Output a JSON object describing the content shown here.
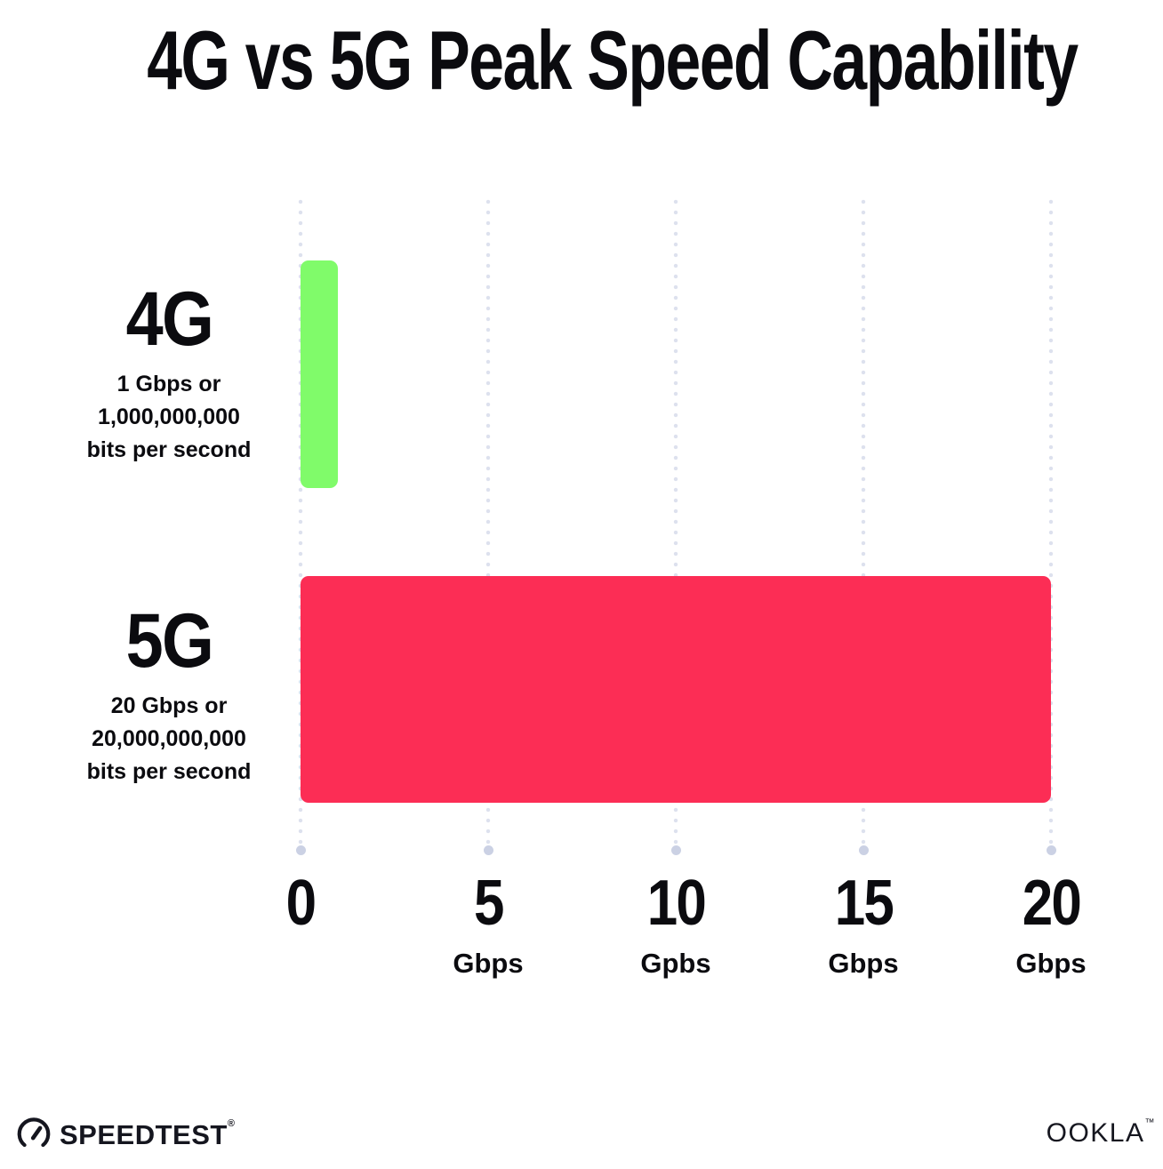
{
  "title": "4G vs 5G Peak Speed Capability",
  "chart_data": {
    "type": "bar",
    "orientation": "horizontal",
    "title": "4G vs 5G Peak Speed Capability",
    "categories": [
      "4G",
      "5G"
    ],
    "values": [
      1,
      20
    ],
    "value_unit": "Gbps",
    "xlabel": "",
    "ylabel": "",
    "xlim": [
      0,
      20
    ],
    "grid": "dotted vertical gridlines every 5 Gbps with round end dot",
    "legend": "none",
    "bars": [
      {
        "label": "4G",
        "value_gbps": 1,
        "color": "#80FB6A",
        "description": [
          "1 Gbps or",
          "1,000,000,000",
          "bits per second"
        ]
      },
      {
        "label": "5G",
        "value_gbps": 20,
        "color": "#FC2D55",
        "description": [
          "20 Gbps or",
          "20,000,000,000",
          "bits per second"
        ]
      }
    ],
    "x_ticks": [
      {
        "label": "0",
        "unit": ""
      },
      {
        "label": "5",
        "unit": "Gbps"
      },
      {
        "label": "10",
        "unit": "Gpbs"
      },
      {
        "label": "15",
        "unit": "Gbps"
      },
      {
        "label": "20",
        "unit": "Gbps"
      }
    ]
  },
  "footer": {
    "speedtest_logo": "SPEEDTEST",
    "speedtest_mark": "®",
    "ookla_logo": "OOKLA",
    "ookla_mark": "™"
  },
  "colors": {
    "background": "#FFFFFF",
    "text": "#0B0B0F",
    "bar_4g": "#80FB6A",
    "bar_5g": "#FC2D55",
    "grid_dot": "#DDE1EE",
    "grid_end_dot": "#CBD1E4"
  }
}
